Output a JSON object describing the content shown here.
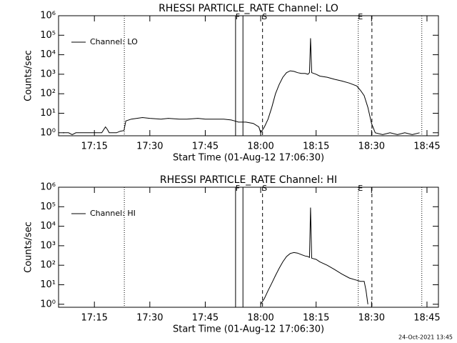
{
  "chart_data": [
    {
      "type": "line",
      "title": "RHESSI PARTICLE_RATE Channel: LO",
      "x_label": "Start Time (01-Aug-12 17:06:30)",
      "y_label": "Counts/sec",
      "log_y": true,
      "legend": "upper left",
      "xlim": [
        1025.3,
        1128.1
      ],
      "ylim": [
        0.7,
        1000000
      ],
      "xticks": [
        {
          "value": 1035,
          "label": "17:15"
        },
        {
          "value": 1050,
          "label": "17:30"
        },
        {
          "value": 1065,
          "label": "17:45"
        },
        {
          "value": 1080,
          "label": "18:00"
        },
        {
          "value": 1095,
          "label": "18:15"
        },
        {
          "value": 1110,
          "label": "18:30"
        },
        {
          "value": 1125,
          "label": "18:45"
        }
      ],
      "yticks": [
        {
          "value": 1,
          "label": "10⁰"
        },
        {
          "value": 10,
          "label": "10¹"
        },
        {
          "value": 100,
          "label": "10²"
        },
        {
          "value": 1000,
          "label": "10³"
        },
        {
          "value": 10000,
          "label": "10⁴"
        },
        {
          "value": 100000,
          "label": "10⁵"
        },
        {
          "value": 1000000,
          "label": "10⁶"
        }
      ],
      "markers": [
        {
          "x": 1043.1,
          "style": "dotted"
        },
        {
          "x": 1073.2,
          "style": "solid",
          "label": "F"
        },
        {
          "x": 1075.2,
          "style": "solid"
        },
        {
          "x": 1080.5,
          "style": "dashed",
          "label": "S"
        },
        {
          "x": 1106.4,
          "style": "dotted",
          "label": "E"
        },
        {
          "x": 1110.1,
          "style": "dashed"
        },
        {
          "x": 1123.6,
          "style": "dotted"
        }
      ],
      "series": [
        {
          "name": "Channel: LO",
          "color": "#000000",
          "x": [
            1026.5,
            1028,
            1029,
            1030,
            1031,
            1033,
            1035,
            1037,
            1038,
            1038.5,
            1039,
            1040,
            1041,
            1042,
            1043,
            1043.5,
            1045,
            1048,
            1050,
            1053,
            1055,
            1058,
            1060,
            1063,
            1065,
            1068,
            1070,
            1072,
            1073,
            1074,
            1076,
            1078,
            1079.5,
            1080,
            1081,
            1082,
            1083,
            1084,
            1085,
            1086,
            1087,
            1088,
            1089,
            1090,
            1091,
            1092,
            1092.8,
            1093.2,
            1093.5,
            1093.8,
            1095,
            1096,
            1098,
            1100,
            1102,
            1104,
            1106,
            1107,
            1108,
            1109,
            1110,
            1111,
            1113,
            1115,
            1117,
            1119,
            1121,
            1123
          ],
          "values": [
            1,
            1,
            0.8,
            1,
            1,
            1,
            1,
            1,
            2,
            1.5,
            1,
            1,
            1,
            1.2,
            1.3,
            4,
            5,
            6,
            5.5,
            5,
            5.5,
            5,
            5,
            5.5,
            5,
            5,
            5,
            4.5,
            4,
            3.5,
            3.5,
            3,
            2,
            1,
            2,
            5,
            20,
            100,
            300,
            700,
            1200,
            1500,
            1400,
            1200,
            1100,
            1100,
            1000,
            1200,
            70000,
            1200,
            1000,
            800,
            700,
            550,
            450,
            350,
            250,
            150,
            80,
            20,
            3,
            1,
            0.8,
            1,
            0.8,
            1,
            0.8,
            1
          ]
        }
      ]
    },
    {
      "type": "line",
      "title": "RHESSI PARTICLE_RATE Channel: HI",
      "x_label": "Start Time (01-Aug-12 17:06:30)",
      "y_label": "Counts/sec",
      "log_y": true,
      "legend": "upper left",
      "xlim": [
        1025.3,
        1128.1
      ],
      "ylim": [
        0.7,
        1000000
      ],
      "xticks": [
        {
          "value": 1035,
          "label": "17:15"
        },
        {
          "value": 1050,
          "label": "17:30"
        },
        {
          "value": 1065,
          "label": "17:45"
        },
        {
          "value": 1080,
          "label": "18:00"
        },
        {
          "value": 1095,
          "label": "18:15"
        },
        {
          "value": 1110,
          "label": "18:30"
        },
        {
          "value": 1125,
          "label": "18:45"
        }
      ],
      "yticks": [
        {
          "value": 1,
          "label": "10⁰"
        },
        {
          "value": 10,
          "label": "10¹"
        },
        {
          "value": 100,
          "label": "10²"
        },
        {
          "value": 1000,
          "label": "10³"
        },
        {
          "value": 10000,
          "label": "10⁴"
        },
        {
          "value": 100000,
          "label": "10⁵"
        },
        {
          "value": 1000000,
          "label": "10⁶"
        }
      ],
      "markers": [
        {
          "x": 1043.1,
          "style": "dotted"
        },
        {
          "x": 1073.2,
          "style": "solid",
          "label": "F"
        },
        {
          "x": 1075.2,
          "style": "solid"
        },
        {
          "x": 1080.5,
          "style": "dashed",
          "label": "S"
        },
        {
          "x": 1106.4,
          "style": "dotted",
          "label": "E"
        },
        {
          "x": 1110.1,
          "style": "dashed"
        },
        {
          "x": 1123.6,
          "style": "dotted"
        }
      ],
      "series": [
        {
          "name": "Channel: HI",
          "color": "#000000",
          "x": [
            1080,
            1081,
            1082,
            1083,
            1084,
            1085,
            1086,
            1087,
            1088,
            1089,
            1090,
            1091,
            1092,
            1092.8,
            1093.2,
            1093.5,
            1093.8,
            1095,
            1096,
            1098,
            1100,
            1102,
            1104,
            1106,
            1107,
            1108,
            1108.5,
            1109
          ],
          "values": [
            1,
            2,
            5,
            12,
            30,
            70,
            150,
            280,
            400,
            450,
            420,
            350,
            300,
            280,
            250,
            90000,
            230,
            200,
            150,
            100,
            60,
            35,
            22,
            17,
            15,
            15,
            5,
            1
          ]
        }
      ]
    }
  ],
  "footer": "24-Oct-2021 13:45"
}
